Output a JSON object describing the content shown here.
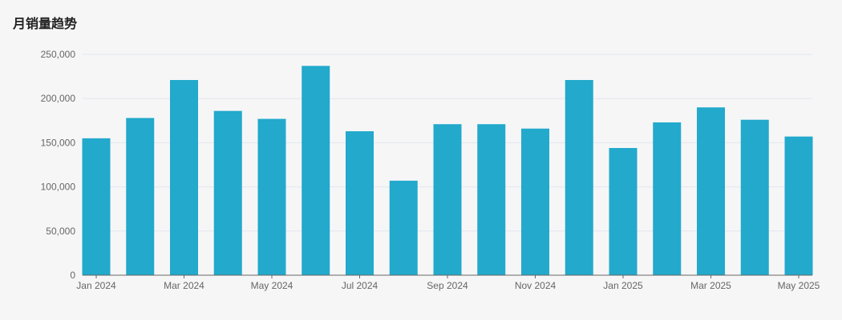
{
  "title": "月销量趋势",
  "colors": {
    "bar": "#22a9cc",
    "grid": "#e2e6ee",
    "axis": "#666666"
  },
  "chart_data": {
    "type": "bar",
    "categories": [
      "Jan 2024",
      "Feb 2024",
      "Mar 2024",
      "Apr 2024",
      "May 2024",
      "Jun 2024",
      "Jul 2024",
      "Aug 2024",
      "Sep 2024",
      "Oct 2024",
      "Nov 2024",
      "Dec 2024",
      "Jan 2025",
      "Feb 2025",
      "Mar 2025",
      "Apr 2025",
      "May 2025"
    ],
    "values": [
      155000,
      178000,
      221000,
      186000,
      177000,
      237000,
      163000,
      107000,
      171000,
      171000,
      166000,
      221000,
      144000,
      173000,
      190000,
      176000,
      157000
    ],
    "x_tick_labels": [
      "Jan 2024",
      "Mar 2024",
      "May 2024",
      "Jul 2024",
      "Sep 2024",
      "Nov 2024",
      "Jan 2025",
      "Mar 2025",
      "May 2025"
    ],
    "y_ticks": [
      "0",
      "50,000",
      "100,000",
      "150,000",
      "200,000",
      "250,000"
    ],
    "ylim": [
      0,
      250000
    ],
    "grid": true,
    "legend": "none"
  }
}
